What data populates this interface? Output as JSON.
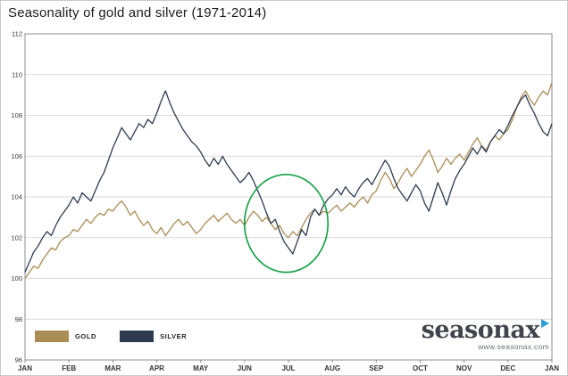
{
  "title": "Seasonality of gold and silver (1971-2014)",
  "logo": {
    "brand": "seasonax",
    "url": "www.seasonax.com"
  },
  "colors": {
    "gold": "#aa8c55",
    "silver": "#2c3b50",
    "annotation": "#1aa24a",
    "grid": "#dadada",
    "axis": "#8c8c8c",
    "logo_text": "#40454d",
    "logo_triangle": "#2d9fd8"
  },
  "chart_data": {
    "type": "line",
    "title": "Seasonality of gold and silver (1971-2014)",
    "x_labels": [
      "JAN",
      "FEB",
      "MAR",
      "APR",
      "MAY",
      "JUN",
      "JUL",
      "AUG",
      "SEP",
      "OCT",
      "NOV",
      "DEC",
      "JAN"
    ],
    "x_range": [
      0,
      12
    ],
    "x_step": 0.1,
    "y_range": [
      96,
      112
    ],
    "y_step": 2,
    "grid": "horizontal",
    "legend_position": "bottom-left",
    "annotation": {
      "shape": "ellipse",
      "cx": 5.95,
      "cy": 102.7,
      "rx": 0.95,
      "ry": 2.4,
      "color": "#1aa24a"
    },
    "series": [
      {
        "name": "GOLD",
        "color": "#aa8c55",
        "values": [
          100.0,
          100.3,
          100.6,
          100.5,
          100.9,
          101.2,
          101.5,
          101.4,
          101.8,
          102.0,
          102.1,
          102.4,
          102.3,
          102.6,
          102.9,
          102.7,
          103.0,
          103.2,
          103.1,
          103.4,
          103.3,
          103.6,
          103.8,
          103.5,
          103.1,
          103.3,
          102.9,
          102.6,
          102.8,
          102.4,
          102.2,
          102.5,
          102.1,
          102.4,
          102.7,
          102.9,
          102.6,
          102.8,
          102.5,
          102.2,
          102.4,
          102.7,
          102.9,
          103.1,
          102.8,
          103.0,
          103.2,
          102.9,
          102.7,
          102.9,
          102.6,
          103.0,
          103.3,
          103.1,
          102.8,
          103.0,
          102.7,
          102.4,
          102.6,
          102.2,
          102.0,
          102.3,
          102.1,
          102.5,
          102.9,
          103.2,
          103.4,
          103.1,
          103.3,
          103.2,
          103.4,
          103.6,
          103.3,
          103.5,
          103.7,
          103.5,
          103.8,
          104.0,
          103.7,
          104.1,
          104.3,
          104.8,
          105.2,
          104.9,
          104.4,
          104.7,
          105.1,
          105.4,
          105.0,
          105.3,
          105.6,
          106.0,
          106.3,
          105.8,
          105.2,
          105.5,
          105.9,
          105.6,
          105.9,
          106.1,
          105.8,
          106.2,
          106.6,
          106.9,
          106.5,
          106.3,
          106.7,
          107.0,
          106.8,
          107.1,
          107.3,
          107.8,
          108.4,
          108.9,
          109.2,
          108.8,
          108.5,
          108.9,
          109.2,
          109.0,
          109.6
        ]
      },
      {
        "name": "SILVER",
        "color": "#2c3b50",
        "values": [
          100.3,
          100.8,
          101.3,
          101.6,
          102.0,
          102.3,
          102.1,
          102.6,
          103.0,
          103.3,
          103.6,
          104.0,
          103.7,
          104.2,
          104.0,
          103.8,
          104.3,
          104.8,
          105.2,
          105.8,
          106.4,
          106.9,
          107.4,
          107.1,
          106.8,
          107.2,
          107.6,
          107.4,
          107.8,
          107.6,
          108.1,
          108.7,
          109.2,
          108.6,
          108.1,
          107.7,
          107.3,
          107.0,
          106.7,
          106.5,
          106.2,
          105.8,
          105.5,
          105.9,
          105.6,
          106.0,
          105.6,
          105.3,
          105.0,
          104.7,
          104.9,
          105.2,
          104.8,
          104.3,
          103.8,
          103.2,
          102.7,
          102.9,
          102.3,
          101.8,
          101.5,
          101.2,
          101.8,
          102.4,
          102.1,
          103.0,
          103.4,
          103.1,
          103.6,
          103.9,
          104.1,
          104.4,
          104.1,
          104.5,
          104.2,
          104.0,
          104.4,
          104.7,
          104.9,
          104.6,
          105.0,
          105.4,
          105.8,
          105.5,
          104.9,
          104.4,
          104.1,
          103.8,
          104.2,
          104.6,
          104.3,
          103.7,
          103.3,
          104.0,
          104.7,
          104.2,
          103.6,
          104.3,
          104.9,
          105.3,
          105.6,
          106.0,
          106.4,
          106.1,
          106.5,
          106.2,
          106.7,
          107.0,
          107.3,
          107.1,
          107.5,
          108.0,
          108.4,
          108.8,
          109.0,
          108.5,
          108.1,
          107.6,
          107.2,
          107.0,
          107.6
        ]
      }
    ]
  }
}
